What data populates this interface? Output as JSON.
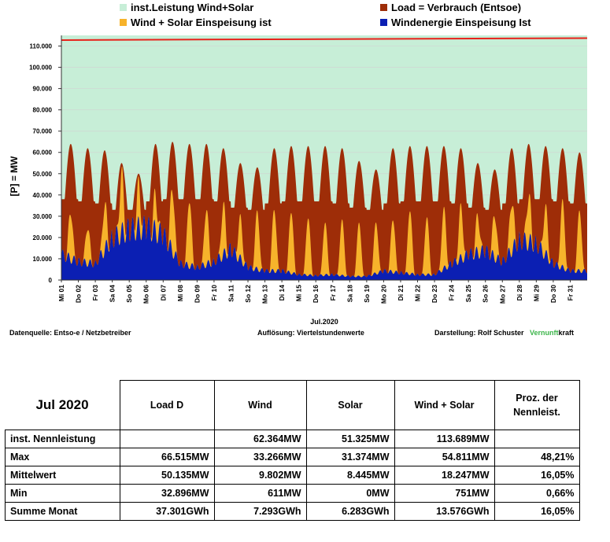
{
  "chart_data": {
    "type": "area",
    "legend": [
      {
        "label": "inst.Leistung Wind+Solar",
        "color": "#c7eed7"
      },
      {
        "label": "Load =  Verbrauch (Entsoe)",
        "color": "#9e2d08"
      },
      {
        "label": "Wind + Solar Einspeisung ist",
        "color": "#f7b32b"
      },
      {
        "label": "Windenergie Einspeisung Ist",
        "color": "#0b1fb3"
      }
    ],
    "ylabel": "[P] = MW",
    "xlabel": "Jul.2020",
    "ylim": [
      0,
      115000
    ],
    "yticks": [
      "0",
      "10.000",
      "20.000",
      "30.000",
      "40.000",
      "50.000",
      "60.000",
      "70.000",
      "80.000",
      "90.000",
      "100.000",
      "110.000"
    ],
    "ytick_values": [
      0,
      10000,
      20000,
      30000,
      40000,
      50000,
      60000,
      70000,
      80000,
      90000,
      100000,
      110000
    ],
    "x_labels": [
      "Mi 01",
      "Do 02",
      "Fr 03",
      "Sa 04",
      "So 05",
      "Mo 06",
      "Di 07",
      "Mi 08",
      "Do 09",
      "Fr 10",
      "Sa 11",
      "So 12",
      "Mo 13",
      "Di 14",
      "Mi 15",
      "Do 16",
      "Fr 17",
      "Sa 18",
      "So 19",
      "Mo 20",
      "Di 21",
      "Mi 22",
      "Do 23",
      "Fr 24",
      "Sa 25",
      "So 26",
      "Mo 27",
      "Di 28",
      "Mi 29",
      "Do 30",
      "Fr 31"
    ],
    "installed_capacity_start": 112800,
    "installed_capacity_end": 113700,
    "daily_load_peak": [
      64000,
      62000,
      61000,
      55000,
      50000,
      64000,
      65000,
      64000,
      64000,
      62000,
      55000,
      53000,
      62000,
      63000,
      63000,
      63000,
      62000,
      56000,
      52000,
      62000,
      63000,
      63000,
      63000,
      62000,
      55000,
      52000,
      62000,
      64000,
      63000,
      62000,
      60000
    ],
    "daily_load_min": [
      38000,
      37000,
      36000,
      33000,
      33000,
      37000,
      38000,
      38000,
      38000,
      37000,
      34000,
      33000,
      36000,
      37000,
      37000,
      37000,
      36000,
      34000,
      33000,
      36000,
      37000,
      37000,
      37000,
      36000,
      34000,
      33000,
      36000,
      38000,
      38000,
      37000,
      36000
    ],
    "daily_wind_solar_peak": [
      36000,
      27000,
      30000,
      50000,
      47000,
      45000,
      54000,
      40000,
      33000,
      33000,
      36000,
      34000,
      34000,
      34000,
      30000,
      27000,
      29000,
      27000,
      26000,
      30000,
      34000,
      30000,
      31000,
      33000,
      31000,
      36000,
      33000,
      44000,
      42000,
      40000,
      33000
    ],
    "daily_wind_mean": [
      14000,
      10000,
      9000,
      23000,
      28000,
      29000,
      25000,
      9000,
      7000,
      10000,
      17000,
      7000,
      5000,
      5000,
      3000,
      2500,
      3000,
      2000,
      2000,
      5000,
      4000,
      3000,
      3000,
      9000,
      14000,
      16000,
      10000,
      22000,
      20000,
      9000,
      5000
    ],
    "source_label": "Datenquelle:  Entso-e  / Netzbetreiber",
    "resolution_label": "Auflösung: Viertelstundenwerte",
    "author_label": "Darstellung:  Rolf Schuster",
    "brand_part1": "Vernunft",
    "brand_part2": "kraft"
  },
  "table": {
    "title": "Jul 2020",
    "headers": [
      "Load D",
      "Wind",
      "Solar",
      "Wind + Solar",
      "Proz. der\nNennleist."
    ],
    "rows": [
      {
        "label": "inst. Nennleistung",
        "cells": [
          "",
          "62.364MW",
          "51.325MW",
          "113.689MW",
          ""
        ]
      },
      {
        "label": "Max",
        "cells": [
          "66.515MW",
          "33.266MW",
          "31.374MW",
          "54.811MW",
          "48,21%"
        ]
      },
      {
        "label": "Mittelwert",
        "cells": [
          "50.135MW",
          "9.802MW",
          "8.445MW",
          "18.247MW",
          "16,05%"
        ]
      },
      {
        "label": "Min",
        "cells": [
          "32.896MW",
          "611MW",
          "0MW",
          "751MW",
          "0,66%"
        ]
      },
      {
        "label": "Summe Monat",
        "cells": [
          "37.301GWh",
          "7.293GWh",
          "6.283GWh",
          "13.576GWh",
          "16,05%"
        ]
      }
    ]
  }
}
